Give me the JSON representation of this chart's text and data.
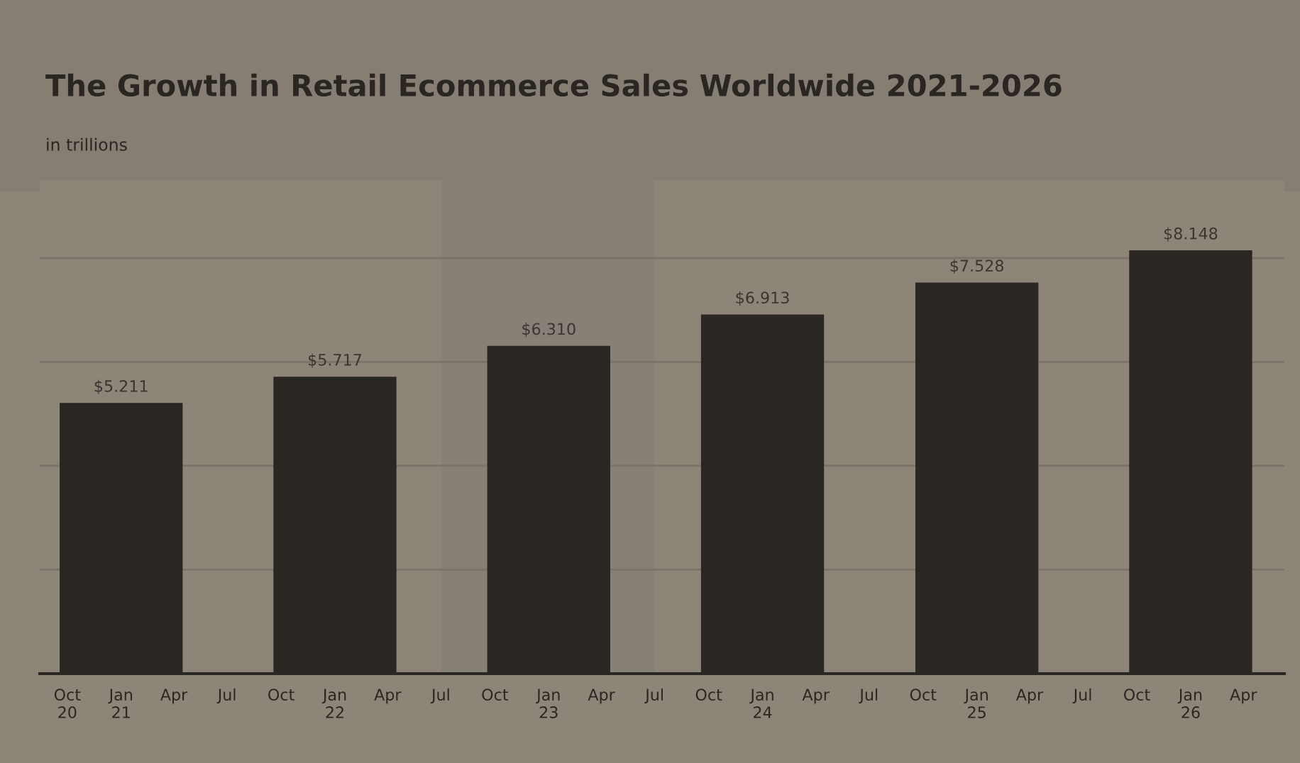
{
  "chart_data": {
    "type": "bar",
    "title": "The Growth in Retail Ecommerce Sales Worldwide 2021-2026",
    "subtitle": "in trillions",
    "x": [
      "2021-01",
      "2022-01",
      "2023-01",
      "2024-01",
      "2025-01",
      "2026-01"
    ],
    "values": [
      5.211,
      5.717,
      6.31,
      6.913,
      7.528,
      8.148
    ],
    "value_labels": [
      "$5.211",
      "$5.717",
      "$6.310",
      "$6.913",
      "$7.528",
      "$8.148"
    ],
    "color": "#2a2622",
    "xlim": [
      "2020-08-15",
      "2026-06-10"
    ],
    "xticks": [
      {
        "value": "2020-10",
        "label": "Oct\n20"
      },
      {
        "value": "2021-01",
        "label": "Jan\n21"
      },
      {
        "value": "2021-04",
        "label": "Apr"
      },
      {
        "value": "2021-07",
        "label": "Jul"
      },
      {
        "value": "2021-10",
        "label": "Oct"
      },
      {
        "value": "2022-01",
        "label": "Jan\n22"
      },
      {
        "value": "2022-04",
        "label": "Apr"
      },
      {
        "value": "2022-07",
        "label": "Jul"
      },
      {
        "value": "2022-10",
        "label": "Oct"
      },
      {
        "value": "2023-01",
        "label": "Jan\n23"
      },
      {
        "value": "2023-04",
        "label": "Apr"
      },
      {
        "value": "2023-07",
        "label": "Jul"
      },
      {
        "value": "2023-10",
        "label": "Oct"
      },
      {
        "value": "2024-01",
        "label": "Jan\n24"
      },
      {
        "value": "2024-04",
        "label": "Apr"
      },
      {
        "value": "2024-07",
        "label": "Jul"
      },
      {
        "value": "2024-10",
        "label": "Oct"
      },
      {
        "value": "2025-01",
        "label": "Jan\n25"
      },
      {
        "value": "2025-04",
        "label": "Apr"
      },
      {
        "value": "2025-07",
        "label": "Jul"
      },
      {
        "value": "2025-10",
        "label": "Oct"
      },
      {
        "value": "2026-01",
        "label": "Jan\n26"
      },
      {
        "value": "2026-04",
        "label": "Apr"
      }
    ],
    "ylim": [
      0,
      9.5
    ],
    "yticks": [
      {
        "value": 0,
        "label": null
      },
      {
        "value": 2,
        "label": null
      },
      {
        "value": 4,
        "label": null
      },
      {
        "value": 6,
        "label": null
      },
      {
        "value": 8,
        "label": null
      }
    ],
    "bands": [
      {
        "axis": "x",
        "from": "2022-07",
        "to": "2023-07",
        "color": "#868076"
      }
    ],
    "grid": "y",
    "tick_labels": "x"
  }
}
